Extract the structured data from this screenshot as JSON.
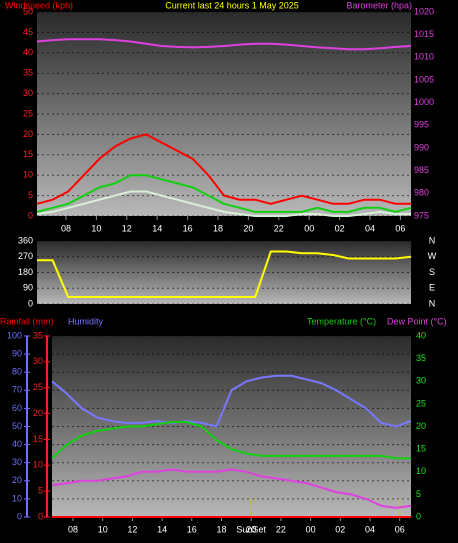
{
  "chart_data": [
    {
      "type": "line",
      "title": "Current last 24 hours 1 May 2025",
      "ylim": [
        0,
        50
      ],
      "yticks": [
        0,
        5,
        10,
        15,
        20,
        25,
        30,
        35,
        40,
        45,
        50
      ],
      "ycolor": "#ff2020",
      "y2lim": [
        975,
        1020
      ],
      "y2ticks": [
        975,
        980,
        985,
        990,
        995,
        1000,
        1005,
        1010,
        1015,
        1020
      ],
      "y2color": "#e040e0",
      "xtick_labels": [
        "08",
        "10",
        "12",
        "14",
        "16",
        "18",
        "20",
        "22",
        "00",
        "02",
        "04",
        "06"
      ],
      "grid": true,
      "series": [
        {
          "name": "Windspeed (kph)",
          "color": "#ff0000",
          "values": [
            3,
            4,
            6,
            10,
            14,
            17,
            19,
            20,
            18,
            16,
            14,
            10,
            5,
            4,
            4,
            3,
            4,
            5,
            4,
            3,
            3,
            4,
            4,
            3,
            3
          ]
        },
        {
          "color": "#10d010",
          "values": [
            1,
            2,
            3,
            5,
            7,
            8,
            10,
            10,
            9,
            8,
            7,
            5,
            3,
            2,
            1,
            1,
            1,
            1,
            2,
            1,
            1,
            2,
            2,
            1,
            2
          ]
        },
        {
          "color": "#d8f0d8",
          "values": [
            0.5,
            1,
            2,
            3,
            4,
            5,
            6,
            6,
            5,
            4,
            3,
            2,
            1,
            0.5,
            0,
            0,
            0,
            0.5,
            0.5,
            0,
            0,
            0.5,
            1,
            0.5,
            0.5
          ]
        },
        {
          "name": "Barometer (hpa)",
          "color": "#e040e0",
          "axis": "y2",
          "values": [
            1013.5,
            1013.8,
            1014,
            1014,
            1014,
            1013.8,
            1013.5,
            1013,
            1012.5,
            1012.3,
            1012.2,
            1012.3,
            1012.5,
            1012.8,
            1013,
            1013,
            1012.8,
            1012.5,
            1012.2,
            1012,
            1011.8,
            1011.8,
            1012,
            1012.3,
            1012.5
          ]
        }
      ]
    },
    {
      "type": "line",
      "ylim": [
        0,
        360
      ],
      "yticks": [
        0,
        90,
        180,
        270,
        360
      ],
      "ycolor": "#ffffff",
      "right_labels": [
        "N",
        "W",
        "S",
        "E",
        "N"
      ],
      "grid": true,
      "series": [
        {
          "color": "#ffff00",
          "values": [
            250,
            250,
            40,
            40,
            40,
            40,
            40,
            40,
            40,
            40,
            40,
            40,
            40,
            40,
            40,
            300,
            300,
            290,
            290,
            280,
            260,
            260,
            260,
            260,
            270
          ]
        }
      ]
    },
    {
      "type": "line",
      "ylim": [
        0,
        100
      ],
      "yticks": [
        0,
        10,
        20,
        30,
        40,
        50,
        60,
        70,
        80,
        90,
        100
      ],
      "ycolor": "#7070ff",
      "y2lim": [
        0,
        40
      ],
      "y2ticks": [
        0,
        5,
        10,
        15,
        20,
        25,
        30,
        35,
        40
      ],
      "y2color": "#20e020",
      "y3lim": [
        0,
        35
      ],
      "y3ticks": [
        0,
        5,
        10,
        15,
        20,
        25,
        30,
        35
      ],
      "y3color": "#ff2020",
      "xtick_labels": [
        "08",
        "10",
        "12",
        "14",
        "16",
        "18",
        "20",
        "22",
        "00",
        "02",
        "04",
        "06"
      ],
      "annotation": "SunSet",
      "grid": true,
      "series": [
        {
          "name": "Rainfall (mm)",
          "color": "#ff0000",
          "axis": "y3",
          "values": [
            0,
            0,
            0,
            0,
            0,
            0,
            0,
            0,
            0,
            0,
            0,
            0,
            0,
            0,
            0,
            0,
            0,
            0,
            0,
            0,
            0,
            0,
            0,
            0,
            0
          ]
        },
        {
          "name": "Humidity",
          "color": "#7878ff",
          "values": [
            75,
            68,
            60,
            55,
            53,
            52,
            52,
            53,
            52,
            53,
            52,
            50,
            70,
            75,
            77,
            78,
            78,
            76,
            74,
            70,
            65,
            60,
            52,
            50,
            53
          ]
        },
        {
          "name": "Temperature (°C)",
          "color": "#10d010",
          "axis": "y2",
          "values": [
            13,
            16,
            18,
            19,
            19.5,
            20,
            20,
            20.5,
            21,
            21,
            20,
            17,
            15,
            14,
            13.5,
            13.5,
            13.5,
            13.5,
            13.5,
            13.5,
            13.5,
            13.5,
            13.5,
            13,
            13
          ]
        },
        {
          "name": "Dew Point (°C)",
          "color": "#e040e0",
          "axis": "y2",
          "values": [
            7,
            7.5,
            8,
            8,
            8.5,
            9,
            10,
            10,
            10.5,
            10,
            10,
            10,
            10.5,
            10,
            9,
            8.5,
            8,
            7.5,
            6.5,
            5.5,
            5,
            4,
            2.5,
            2,
            2.5
          ]
        }
      ]
    }
  ]
}
